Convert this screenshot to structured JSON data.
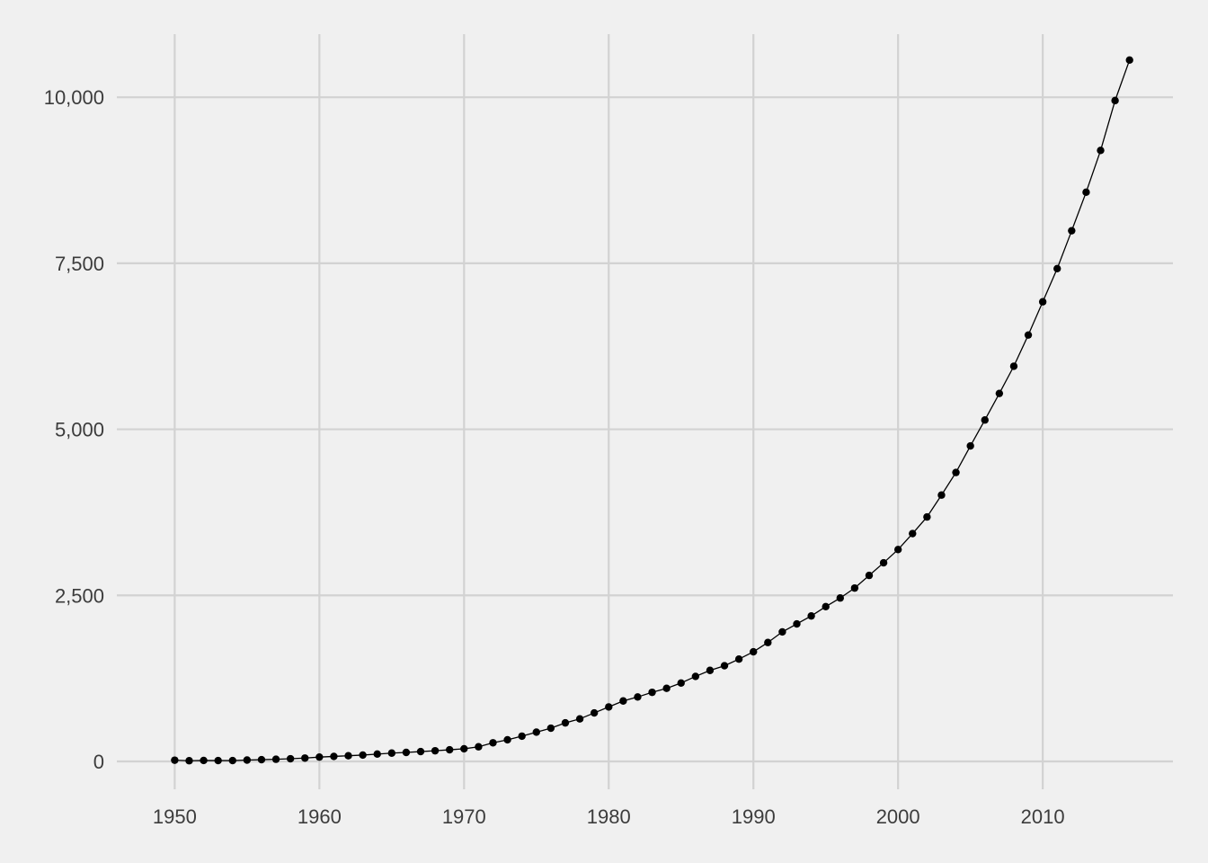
{
  "chart_data": {
    "type": "line",
    "title": "",
    "xlabel": "",
    "ylabel": "",
    "xlim": [
      1946,
      2019
    ],
    "ylim": [
      -420,
      10950
    ],
    "x_ticks": [
      1950,
      1960,
      1970,
      1980,
      1990,
      2000,
      2010
    ],
    "x_tick_labels": [
      "1950",
      "1960",
      "1970",
      "1980",
      "1990",
      "2000",
      "2010"
    ],
    "y_ticks": [
      0,
      2500,
      5000,
      7500,
      10000
    ],
    "y_tick_labels": [
      "0",
      "2,500",
      "5,000",
      "7,500",
      "10,000"
    ],
    "grid": true,
    "legend": "none",
    "colors": {
      "background": "#F0F0F0",
      "grid": "#D2D2D2",
      "series": "#000000",
      "tick_text": "#3C3C3C"
    },
    "series": [
      {
        "x": [
          1950,
          1951,
          1952,
          1953,
          1954,
          1955,
          1956,
          1957,
          1958,
          1959,
          1960,
          1961,
          1962,
          1963,
          1964,
          1965,
          1966,
          1967,
          1968,
          1969,
          1970,
          1971,
          1972,
          1973,
          1974,
          1975,
          1976,
          1977,
          1978,
          1979,
          1980,
          1981,
          1982,
          1983,
          1984,
          1985,
          1986,
          1987,
          1988,
          1989,
          1990,
          1991,
          1992,
          1993,
          1994,
          1995,
          1996,
          1997,
          1998,
          1999,
          2000,
          2001,
          2002,
          2003,
          2004,
          2005,
          2006,
          2007,
          2008,
          2009,
          2010,
          2011,
          2012,
          2013,
          2014,
          2015,
          2016
        ],
        "values": [
          18,
          10,
          14,
          12,
          12,
          20,
          26,
          32,
          40,
          50,
          65,
          75,
          85,
          95,
          110,
          125,
          135,
          148,
          160,
          175,
          190,
          220,
          280,
          325,
          380,
          440,
          500,
          580,
          640,
          730,
          820,
          910,
          970,
          1040,
          1100,
          1180,
          1280,
          1370,
          1440,
          1540,
          1650,
          1790,
          1950,
          2070,
          2190,
          2330,
          2460,
          2610,
          2800,
          2990,
          3190,
          3430,
          3680,
          4010,
          4350,
          4750,
          5140,
          5540,
          5950,
          6420,
          6920,
          7420,
          7990,
          8570,
          9200,
          9950,
          10560
        ]
      }
    ]
  }
}
